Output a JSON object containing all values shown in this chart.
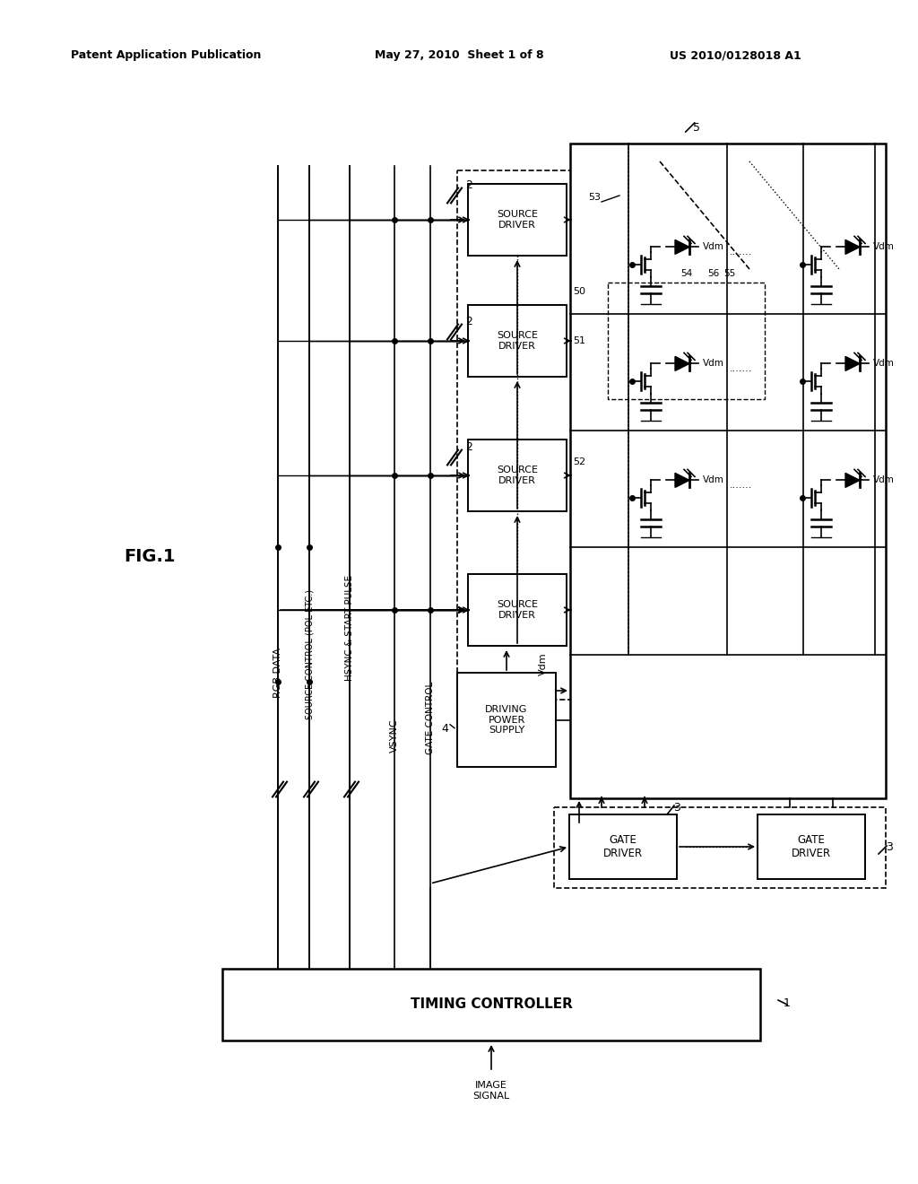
{
  "bg_color": "#ffffff",
  "header_left": "Patent Application Publication",
  "header_center": "May 27, 2010  Sheet 1 of 8",
  "header_right": "US 2010/0128018 A1"
}
